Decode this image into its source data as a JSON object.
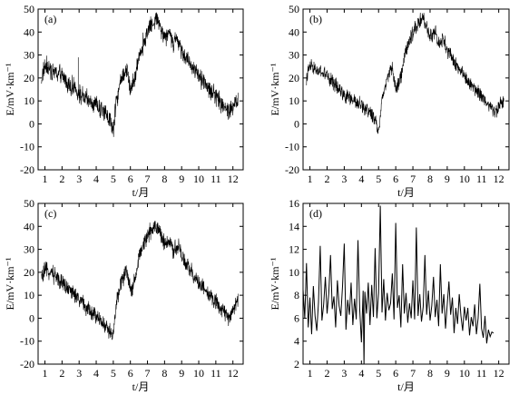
{
  "chart_data": [
    {
      "type": "line",
      "panel_label": "(a)",
      "xlabel": "t/月",
      "ylabel": "E/mV·km⁻¹",
      "xlim": [
        0.6,
        12.6
      ],
      "ylim": [
        -20,
        50
      ],
      "xticks": [
        1,
        2,
        3,
        4,
        5,
        6,
        7,
        8,
        9,
        10,
        11,
        12
      ],
      "yticks": [
        -20,
        -10,
        0,
        10,
        20,
        30,
        40,
        50
      ],
      "noise": 3.5,
      "spikes": [
        {
          "x": 2.95,
          "y": 29
        }
      ],
      "series": [
        {
          "x": [
            0.8,
            1.0,
            1.5,
            2.0,
            2.5,
            3.0,
            3.5,
            4.0,
            4.5,
            4.8,
            5.0,
            5.2,
            5.5,
            5.8,
            6.0,
            6.3,
            6.5,
            6.8,
            7.0,
            7.3,
            7.6,
            7.8,
            8.0,
            8.3,
            8.5,
            8.8,
            9.0,
            9.5,
            10.0,
            10.5,
            11.0,
            11.5,
            11.8,
            12.0,
            12.3
          ],
          "y": [
            20,
            25,
            23,
            21,
            17,
            13,
            10,
            8,
            5,
            2,
            -3,
            11,
            20,
            24,
            15,
            20,
            30,
            36,
            40,
            44,
            46,
            42,
            38,
            40,
            35,
            37,
            32,
            26,
            21,
            16,
            12,
            8,
            5,
            8,
            10
          ]
        }
      ]
    },
    {
      "type": "line",
      "panel_label": "(b)",
      "xlabel": "t/月",
      "ylabel": "E/mV·km⁻¹",
      "xlim": [
        0.6,
        12.6
      ],
      "ylim": [
        -20,
        50
      ],
      "xticks": [
        1,
        2,
        3,
        4,
        5,
        6,
        7,
        8,
        9,
        10,
        11,
        12
      ],
      "yticks": [
        -20,
        -10,
        0,
        10,
        20,
        30,
        40,
        50
      ],
      "noise": 2.6,
      "spikes": [],
      "series": [
        {
          "x": [
            0.8,
            1.0,
            1.5,
            2.0,
            2.5,
            3.0,
            3.5,
            4.0,
            4.5,
            4.8,
            5.0,
            5.2,
            5.5,
            5.8,
            6.0,
            6.3,
            6.5,
            6.8,
            7.0,
            7.3,
            7.6,
            7.8,
            8.0,
            8.3,
            8.5,
            8.8,
            9.0,
            9.5,
            10.0,
            10.5,
            11.0,
            11.5,
            11.8,
            12.0,
            12.3
          ],
          "y": [
            20,
            25,
            23,
            21,
            17,
            13,
            10,
            8,
            5,
            2,
            -4,
            11,
            20,
            24,
            15,
            20,
            30,
            36,
            40,
            44,
            46,
            42,
            38,
            40,
            35,
            37,
            32,
            26,
            21,
            16,
            12,
            8,
            5,
            8,
            10
          ]
        }
      ]
    },
    {
      "type": "line",
      "panel_label": "(c)",
      "xlabel": "t/月",
      "ylabel": "E/mV·km⁻¹",
      "xlim": [
        0.6,
        12.6
      ],
      "ylim": [
        -20,
        50
      ],
      "xticks": [
        1,
        2,
        3,
        4,
        5,
        6,
        7,
        8,
        9,
        10,
        11,
        12
      ],
      "yticks": [
        -20,
        -10,
        0,
        10,
        20,
        30,
        40,
        50
      ],
      "noise": 3.0,
      "spikes": [],
      "series": [
        {
          "x": [
            0.8,
            1.0,
            1.5,
            2.0,
            2.5,
            3.0,
            3.5,
            4.0,
            4.5,
            4.8,
            5.0,
            5.2,
            5.5,
            5.8,
            6.0,
            6.3,
            6.5,
            6.8,
            7.0,
            7.3,
            7.6,
            7.8,
            8.0,
            8.3,
            8.5,
            8.8,
            9.0,
            9.5,
            10.0,
            10.5,
            11.0,
            11.5,
            11.8,
            12.0,
            12.3
          ],
          "y": [
            17,
            21,
            19,
            16,
            12,
            8,
            4,
            1,
            -3,
            -6,
            -8,
            8,
            17,
            20,
            12,
            17,
            27,
            32,
            36,
            39,
            40,
            36,
            32,
            34,
            30,
            32,
            27,
            21,
            16,
            11,
            7,
            3,
            0,
            4,
            7
          ]
        }
      ]
    },
    {
      "type": "line",
      "panel_label": "(d)",
      "xlabel": "t/月",
      "ylabel": "E/mV·km⁻¹",
      "xlim": [
        0.6,
        12.6
      ],
      "ylim": [
        2,
        16
      ],
      "xticks": [
        1,
        2,
        3,
        4,
        5,
        6,
        7,
        8,
        9,
        10,
        11,
        12
      ],
      "yticks": [
        2,
        4,
        6,
        8,
        10,
        12,
        14,
        16
      ],
      "noise": 0,
      "spikes": [],
      "series": [
        {
          "x": [
            0.6,
            0.7,
            0.8,
            0.9,
            1.0,
            1.1,
            1.2,
            1.3,
            1.4,
            1.5,
            1.6,
            1.7,
            1.8,
            1.9,
            2.0,
            2.1,
            2.2,
            2.3,
            2.4,
            2.5,
            2.6,
            2.7,
            2.8,
            2.9,
            3.0,
            3.1,
            3.2,
            3.3,
            3.4,
            3.5,
            3.6,
            3.7,
            3.8,
            3.9,
            4.0,
            4.1,
            4.15,
            4.2,
            4.3,
            4.4,
            4.5,
            4.6,
            4.7,
            4.8,
            4.9,
            5.0,
            5.1,
            5.2,
            5.3,
            5.4,
            5.5,
            5.6,
            5.7,
            5.8,
            5.9,
            6.0,
            6.1,
            6.2,
            6.3,
            6.4,
            6.5,
            6.6,
            6.7,
            6.8,
            6.9,
            7.0,
            7.1,
            7.2,
            7.3,
            7.4,
            7.5,
            7.6,
            7.7,
            7.8,
            7.9,
            8.0,
            8.1,
            8.2,
            8.3,
            8.4,
            8.5,
            8.6,
            8.7,
            8.8,
            8.9,
            9.0,
            9.1,
            9.2,
            9.3,
            9.4,
            9.5,
            9.6,
            9.7,
            9.8,
            9.9,
            10.0,
            10.1,
            10.2,
            10.3,
            10.4,
            10.5,
            10.6,
            10.7,
            10.8,
            10.9,
            11.0,
            11.1,
            11.2,
            11.3,
            11.4,
            11.5,
            11.6,
            11.7
          ],
          "y": [
            8.5,
            6.0,
            10.8,
            5.2,
            7.8,
            4.6,
            8.8,
            6.2,
            4.9,
            7.4,
            12.3,
            5.8,
            7.2,
            9.6,
            6.4,
            8.2,
            11.5,
            6.8,
            7.9,
            5.2,
            9.3,
            7.1,
            6.2,
            8.8,
            12.5,
            5.0,
            7.6,
            6.3,
            9.1,
            5.4,
            7.7,
            5.9,
            12.8,
            6.8,
            3.9,
            8.4,
            1.9,
            8.3,
            6.4,
            9.1,
            5.4,
            8.9,
            6.1,
            12.1,
            6.0,
            8.2,
            15.8,
            6.5,
            9.4,
            5.8,
            8.2,
            6.7,
            7.3,
            9.9,
            5.9,
            14.3,
            6.9,
            8.0,
            5.2,
            10.7,
            6.4,
            8.2,
            5.6,
            7.3,
            6.0,
            9.3,
            5.9,
            13.9,
            6.2,
            8.1,
            5.7,
            7.0,
            11.5,
            6.3,
            8.4,
            5.8,
            7.1,
            9.6,
            6.1,
            7.6,
            5.3,
            10.7,
            6.4,
            8.1,
            5.1,
            7.2,
            9.2,
            6.3,
            7.8,
            4.7,
            6.9,
            5.5,
            8.1,
            6.2,
            4.9,
            7.0,
            5.8,
            6.9,
            4.5,
            6.1,
            5.3,
            7.2,
            4.6,
            6.0,
            9.0,
            5.1,
            4.3,
            6.2,
            3.8,
            5.0,
            4.4,
            4.8,
            4.7
          ]
        }
      ]
    }
  ]
}
